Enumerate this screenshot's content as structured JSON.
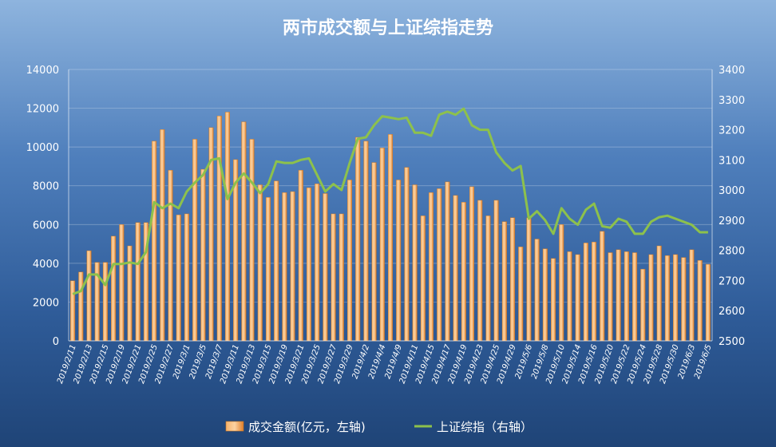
{
  "chart_data": {
    "type": "bar",
    "title": "两市成交额与上证综指走势",
    "ylim": [
      0,
      14000
    ],
    "y2lim": [
      2500,
      3400
    ],
    "yticks": [
      0,
      2000,
      4000,
      6000,
      8000,
      10000,
      12000,
      14000
    ],
    "y2ticks": [
      2500,
      2600,
      2700,
      2800,
      2900,
      3000,
      3100,
      3200,
      3300,
      3400
    ],
    "x_tick_labels": [
      "2019/2/11",
      "2019/2/13",
      "2019/2/15",
      "2019/2/19",
      "2019/2/21",
      "2019/2/25",
      "2019/2/27",
      "2019/3/1",
      "2019/3/5",
      "2019/3/7",
      "2019/3/11",
      "2019/3/13",
      "2019/3/15",
      "2019/3/19",
      "2019/3/21",
      "2019/3/25",
      "2019/3/27",
      "2019/3/29",
      "2019/4/2",
      "2019/4/4",
      "2019/4/9",
      "2019/4/11",
      "2019/4/15",
      "2019/4/17",
      "2019/4/19",
      "2019/4/23",
      "2019/4/25",
      "2019/4/29",
      "2019/5/6",
      "2019/5/8",
      "2019/5/10",
      "2019/5/14",
      "2019/5/16",
      "2019/5/20",
      "2019/5/22",
      "2019/5/24",
      "2019/5/28",
      "2019/5/30",
      "2019/6/3",
      "2019/6/5"
    ],
    "series": [
      {
        "name": "成交金额(亿元，左轴)",
        "axis": "left",
        "type": "bar",
        "color": "#f39a4a",
        "values": [
          3100,
          3550,
          4650,
          4050,
          4050,
          5400,
          6000,
          4900,
          6100,
          6100,
          10300,
          10900,
          8800,
          6500,
          6550,
          10400,
          8850,
          11000,
          11600,
          11800,
          9350,
          11300,
          10400,
          8050,
          7400,
          8250,
          7650,
          7700,
          8800,
          7900,
          8100,
          7600,
          6550,
          6550,
          8300,
          10500,
          10300,
          9200,
          9950,
          10650,
          8300,
          8950,
          8050,
          6450,
          7650,
          7850,
          8200,
          7500,
          7150,
          7950,
          7250,
          6450,
          7250,
          6150,
          6350,
          4850,
          6350,
          5250,
          4750,
          4250,
          6000,
          4600,
          4450,
          5050,
          5100,
          5650,
          4550,
          4700,
          4600,
          4550,
          3700,
          4450,
          4900,
          4400,
          4450,
          4300,
          4700,
          4150,
          3950
        ]
      },
      {
        "name": "上证综指（右轴）",
        "axis": "right",
        "type": "line",
        "color": "#8dc14c",
        "values": [
          2655,
          2665,
          2720,
          2720,
          2685,
          2755,
          2755,
          2760,
          2755,
          2795,
          2960,
          2940,
          2955,
          2940,
          2995,
          3025,
          3050,
          3100,
          3105,
          2970,
          3025,
          3055,
          3025,
          2990,
          3020,
          3095,
          3090,
          3090,
          3100,
          3105,
          3050,
          2995,
          3020,
          3000,
          3090,
          3170,
          3175,
          3215,
          3245,
          3240,
          3235,
          3240,
          3190,
          3190,
          3180,
          3250,
          3260,
          3250,
          3270,
          3215,
          3200,
          3200,
          3125,
          3090,
          3065,
          3080,
          2905,
          2930,
          2900,
          2855,
          2940,
          2905,
          2885,
          2935,
          2955,
          2880,
          2875,
          2905,
          2895,
          2855,
          2855,
          2895,
          2910,
          2915,
          2905,
          2895,
          2885,
          2860,
          2860
        ]
      }
    ]
  }
}
